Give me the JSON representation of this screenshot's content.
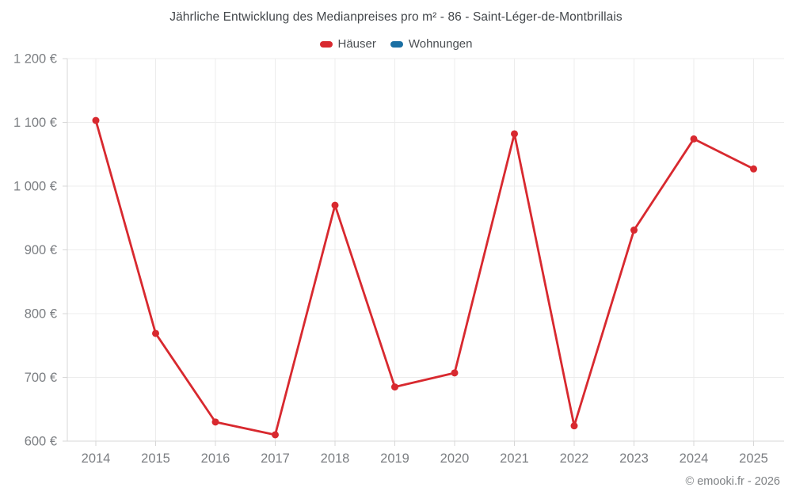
{
  "footer": {
    "copyright": "© emooki.fr - 2026"
  },
  "chart_data": {
    "type": "line",
    "title": "Jährliche Entwicklung des Medianpreises pro m² - 86 - Saint-Léger-de-Montbrillais",
    "categories": [
      "2014",
      "2015",
      "2016",
      "2017",
      "2018",
      "2019",
      "2020",
      "2021",
      "2022",
      "2023",
      "2024",
      "2025"
    ],
    "series": [
      {
        "name": "Häuser",
        "color": "#d8292f",
        "values": [
          1103,
          769,
          630,
          610,
          970,
          685,
          707,
          1082,
          624,
          931,
          1074,
          1027
        ]
      },
      {
        "name": "Wohnungen",
        "color": "#1a6fa3",
        "values": []
      }
    ],
    "xlabel": "",
    "ylabel": "",
    "ylim": [
      600,
      1200
    ],
    "ytick_step": 100,
    "y_unit": "€",
    "grid": true,
    "legend_position": "top",
    "colors": {
      "grid_line": "#ececec",
      "axis_line": "#d7d7d7",
      "tick_label": "#7b7e82"
    }
  }
}
